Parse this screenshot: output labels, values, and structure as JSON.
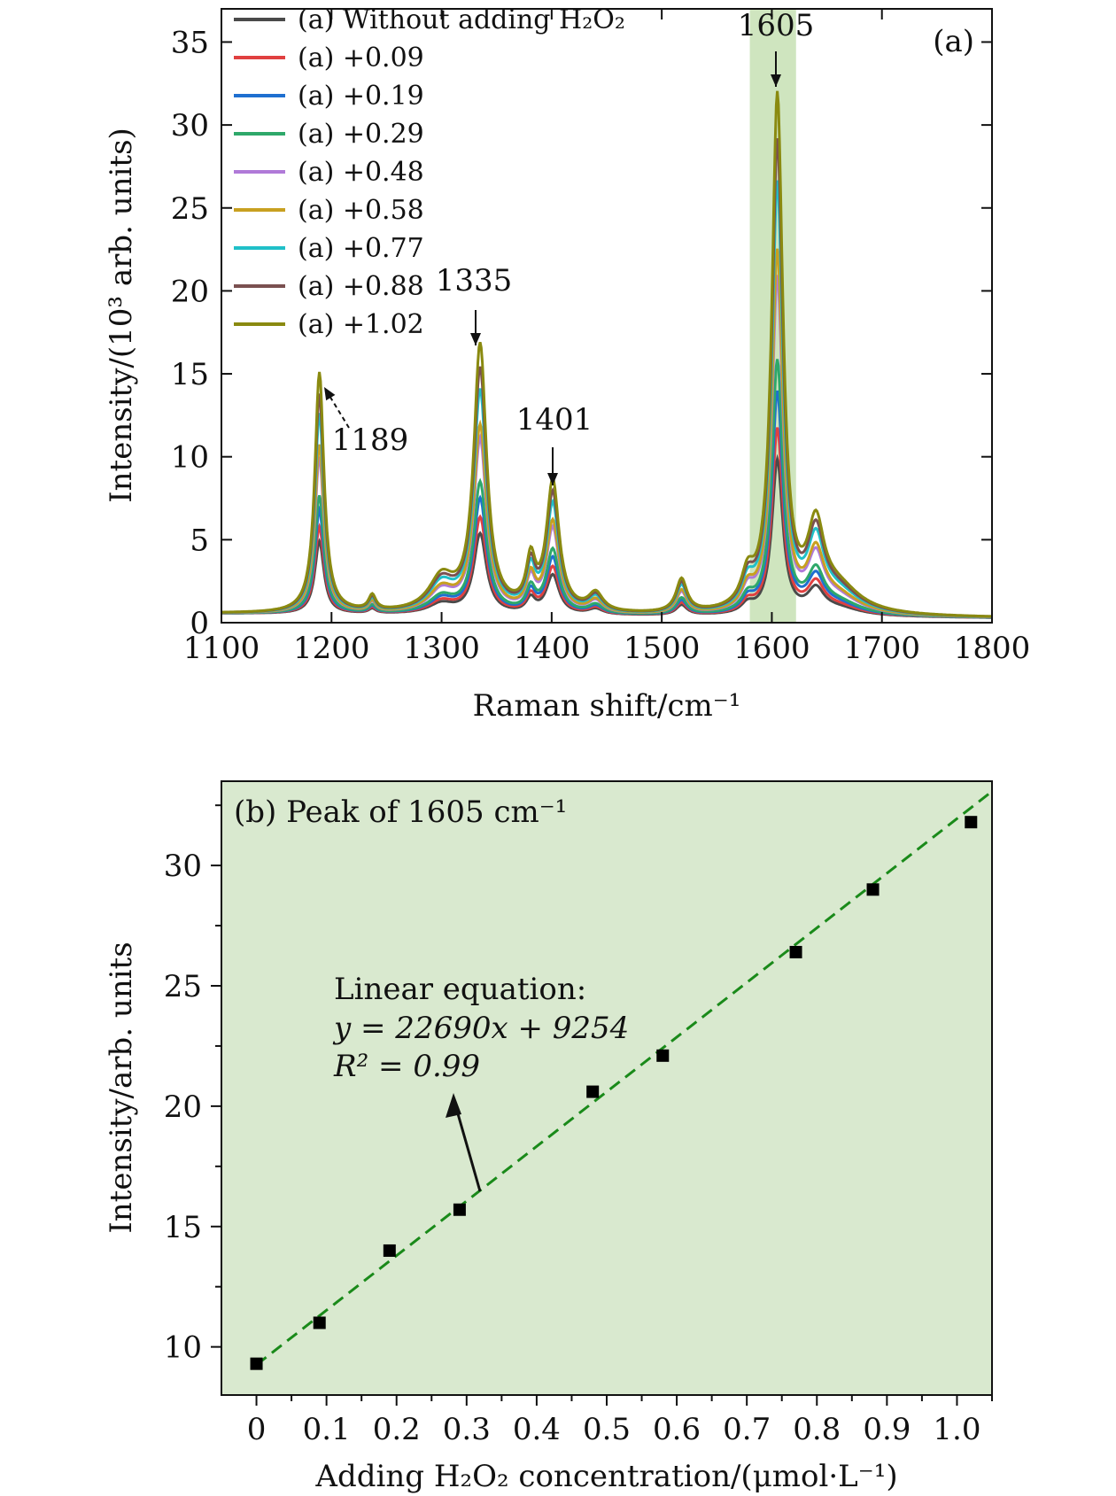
{
  "chart_data": [
    {
      "type": "line",
      "panel_label": "(a)",
      "xlabel": "Raman shift/cm⁻¹",
      "ylabel": "Intensity/(10³ arb. units)",
      "xlim": [
        1100,
        1800
      ],
      "ylim": [
        0,
        37
      ],
      "xticks": [
        "1100",
        "1200",
        "1300",
        "1400",
        "1500",
        "1600",
        "1700",
        "1800"
      ],
      "yticks": [
        "0",
        "5",
        "10",
        "15",
        "20",
        "25",
        "30",
        "35"
      ],
      "highlight_band": [
        1580,
        1622
      ],
      "highlight_color": "#cfe5bf",
      "legend_position": "top-left",
      "peak_annotations": [
        {
          "label": "1189",
          "x": 1189
        },
        {
          "label": "1335",
          "x": 1335
        },
        {
          "label": "1401",
          "x": 1401
        },
        {
          "label": "1605",
          "x": 1605
        }
      ],
      "series": [
        {
          "name": "(a) Without adding H₂O₂",
          "color": "#4a4a4a",
          "scale": 0.3
        },
        {
          "name": "(a) +0.09",
          "color": "#e04040",
          "scale": 0.36
        },
        {
          "name": "(a) +0.19",
          "color": "#1f6fd0",
          "scale": 0.43
        },
        {
          "name": "(a) +0.29",
          "color": "#2ea86a",
          "scale": 0.49
        },
        {
          "name": "(a) +0.48",
          "color": "#b07ad8",
          "scale": 0.65
        },
        {
          "name": "(a) +0.58",
          "color": "#c8a020",
          "scale": 0.7
        },
        {
          "name": "(a) +0.77",
          "color": "#20c0c8",
          "scale": 0.83
        },
        {
          "name": "(a) +0.88",
          "color": "#7a5050",
          "scale": 0.91
        },
        {
          "name": "(a) +1.02",
          "color": "#8a8a10",
          "scale": 1.0
        }
      ],
      "reference_peaks": [
        {
          "center": 1146,
          "height": 0.0,
          "width": 6
        },
        {
          "center": 1189,
          "height": 14.5,
          "width": 5
        },
        {
          "center": 1237,
          "height": 0.9,
          "width": 4
        },
        {
          "center": 1300,
          "height": 2.0,
          "width": 14
        },
        {
          "center": 1335,
          "height": 16.0,
          "width": 7
        },
        {
          "center": 1381,
          "height": 2.8,
          "width": 5
        },
        {
          "center": 1401,
          "height": 7.8,
          "width": 7
        },
        {
          "center": 1440,
          "height": 1.1,
          "width": 8
        },
        {
          "center": 1518,
          "height": 2.0,
          "width": 6
        },
        {
          "center": 1578,
          "height": 1.8,
          "width": 7
        },
        {
          "center": 1605,
          "height": 31.0,
          "width": 6
        },
        {
          "center": 1640,
          "height": 4.6,
          "width": 9
        },
        {
          "center": 1660,
          "height": 1.5,
          "width": 25
        }
      ]
    },
    {
      "type": "scatter",
      "panel_label": "(b) Peak of 1605 cm⁻¹",
      "xlabel": "Adding H₂O₂ concentration/(μmol·L⁻¹)",
      "ylabel": "Intensity/arb. units",
      "xlim": [
        -0.05,
        1.05
      ],
      "ylim": [
        8,
        33.5
      ],
      "xticks": [
        "0",
        "0.1",
        "0.2",
        "0.3",
        "0.4",
        "0.5",
        "0.6",
        "0.7",
        "0.8",
        "0.9",
        "1.0"
      ],
      "yticks": [
        "10",
        "15",
        "20",
        "25",
        "30"
      ],
      "background_color": "#d9e9cf",
      "points": [
        {
          "x": 0.0,
          "y": 9.3
        },
        {
          "x": 0.09,
          "y": 11.0
        },
        {
          "x": 0.19,
          "y": 14.0
        },
        {
          "x": 0.29,
          "y": 15.7
        },
        {
          "x": 0.48,
          "y": 20.6
        },
        {
          "x": 0.58,
          "y": 22.1
        },
        {
          "x": 0.77,
          "y": 26.4
        },
        {
          "x": 0.88,
          "y": 29.0
        },
        {
          "x": 1.02,
          "y": 31.8
        }
      ],
      "fit": {
        "slope": 22.69,
        "intercept": 9.254,
        "x_range": [
          0,
          1.05
        ],
        "color": "#1a8a1a"
      },
      "annotation": {
        "line1": "Linear equation:",
        "line2": "y = 22690x + 9254",
        "line3": "R² = 0.99"
      }
    }
  ]
}
